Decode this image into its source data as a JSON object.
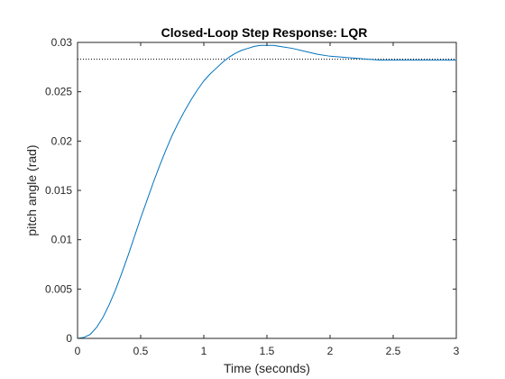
{
  "chart_data": {
    "type": "line",
    "title": "Closed-Loop Step Response: LQR",
    "xlabel": "Time (seconds)",
    "ylabel": "pitch angle (rad)",
    "xlim": [
      0,
      3
    ],
    "ylim": [
      0,
      0.03
    ],
    "xticks": [
      0,
      0.5,
      1,
      1.5,
      2,
      2.5,
      3
    ],
    "yticks": [
      0,
      0.005,
      0.01,
      0.015,
      0.02,
      0.025,
      0.03
    ],
    "xtick_labels": [
      "0",
      "0.5",
      "1",
      "1.5",
      "2",
      "2.5",
      "3"
    ],
    "ytick_labels": [
      "0",
      "0.005",
      "0.01",
      "0.015",
      "0.02",
      "0.025",
      "0.03"
    ],
    "grid": false,
    "reference_line": {
      "style": "dotted",
      "y": 0.0283,
      "color": "#000000"
    },
    "series": [
      {
        "color": "#0072BD",
        "x": [
          0,
          0.05,
          0.1,
          0.15,
          0.2,
          0.25,
          0.3,
          0.35,
          0.4,
          0.45,
          0.5,
          0.55,
          0.6,
          0.65,
          0.7,
          0.75,
          0.8,
          0.85,
          0.9,
          0.95,
          1.0,
          1.05,
          1.1,
          1.15,
          1.2,
          1.25,
          1.3,
          1.35,
          1.4,
          1.45,
          1.5,
          1.55,
          1.6,
          1.7,
          1.8,
          1.9,
          2.0,
          2.1,
          2.2,
          2.3,
          2.4,
          2.5,
          2.6,
          2.7,
          2.8,
          2.9,
          3.0
        ],
        "y": [
          0,
          0.0001,
          0.0004,
          0.0011,
          0.0021,
          0.0034,
          0.0049,
          0.0066,
          0.0084,
          0.0103,
          0.0122,
          0.014,
          0.0158,
          0.0175,
          0.0191,
          0.0206,
          0.0219,
          0.0231,
          0.0242,
          0.0252,
          0.0261,
          0.0268,
          0.0274,
          0.028,
          0.0285,
          0.0289,
          0.0292,
          0.0294,
          0.0296,
          0.0297,
          0.0297,
          0.0297,
          0.0296,
          0.0294,
          0.0291,
          0.0288,
          0.0286,
          0.0285,
          0.0284,
          0.0283,
          0.0282,
          0.0282,
          0.0282,
          0.0282,
          0.0282,
          0.0282,
          0.0282
        ]
      }
    ]
  }
}
